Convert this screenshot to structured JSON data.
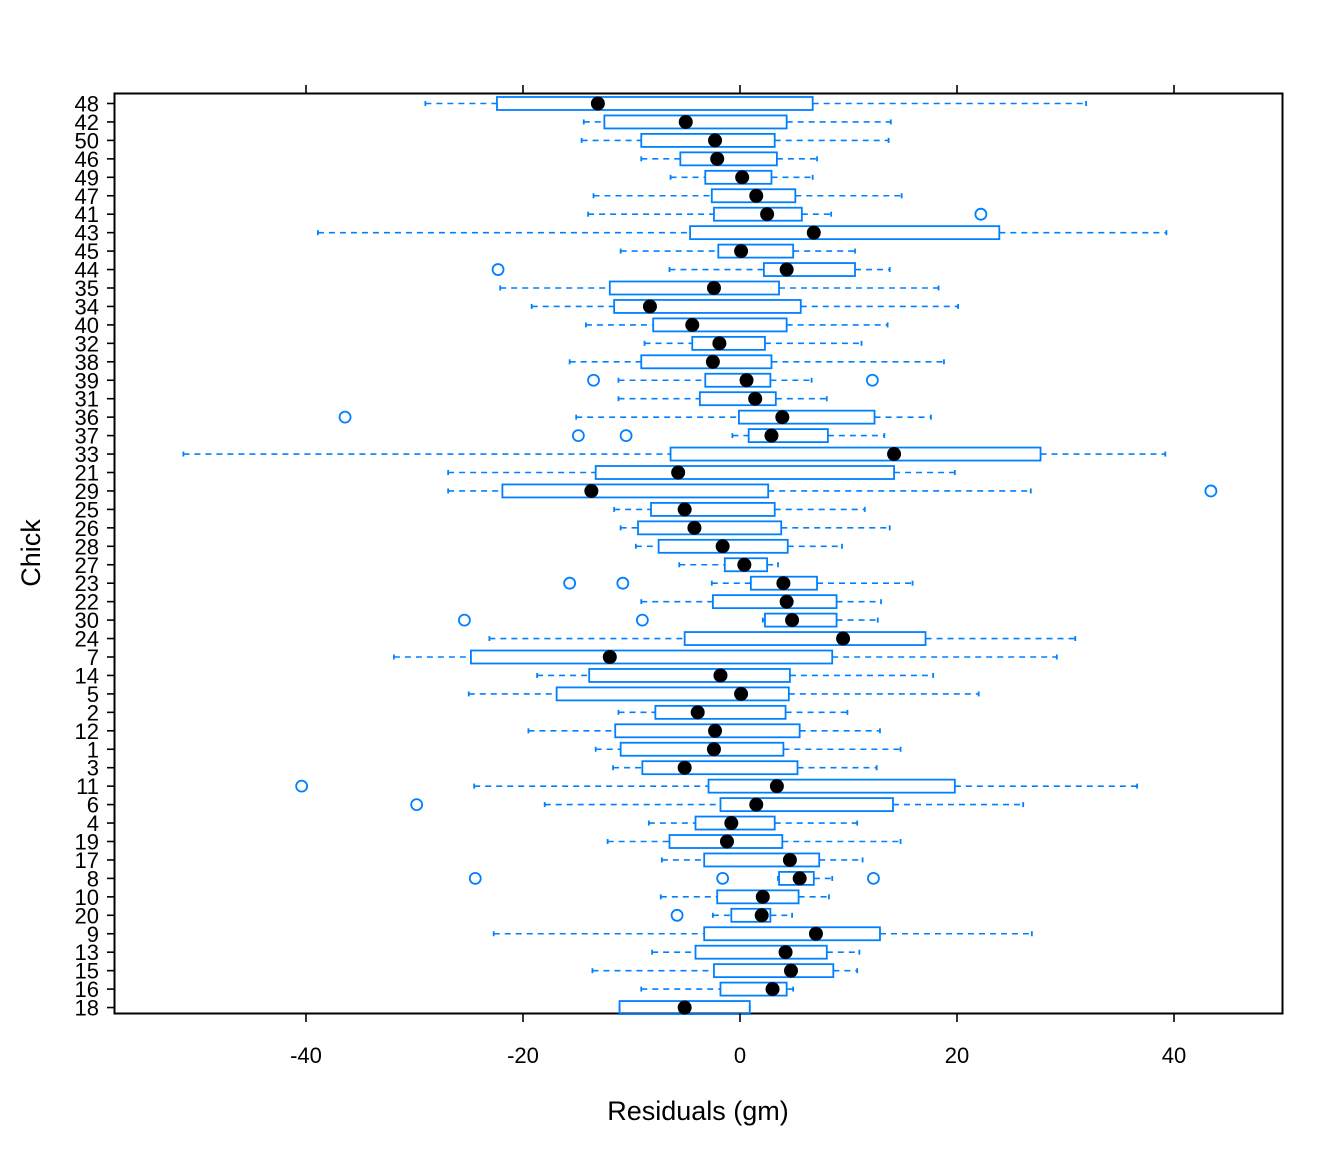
{
  "chart_data": {
    "type": "boxplot",
    "orientation": "horizontal",
    "xlabel": "Residuals (gm)",
    "ylabel": "Chick",
    "xlim": [
      -57,
      50
    ],
    "xticks": [
      -40,
      -20,
      0,
      20,
      40
    ],
    "xtick_labels": [
      "-40",
      "-20",
      "0",
      "20",
      "40"
    ],
    "grid": false,
    "colors": {
      "box": "#0080ff",
      "median": "#000000",
      "frame": "#000000"
    },
    "groups": [
      {
        "label": "48",
        "whisker_low": -29.0,
        "q1": -22.4,
        "median": -13.1,
        "q3": 6.7,
        "whisker_high": 31.9,
        "outliers": []
      },
      {
        "label": "42",
        "whisker_low": -14.4,
        "q1": -12.5,
        "median": -5.0,
        "q3": 4.3,
        "whisker_high": 13.9,
        "outliers": []
      },
      {
        "label": "50",
        "whisker_low": -14.6,
        "q1": -9.1,
        "median": -2.3,
        "q3": 3.2,
        "whisker_high": 13.7,
        "outliers": []
      },
      {
        "label": "46",
        "whisker_low": -9.1,
        "q1": -5.5,
        "median": -2.1,
        "q3": 3.4,
        "whisker_high": 7.1,
        "outliers": []
      },
      {
        "label": "49",
        "whisker_low": -6.4,
        "q1": -3.2,
        "median": 0.2,
        "q3": 2.9,
        "whisker_high": 6.7,
        "outliers": []
      },
      {
        "label": "47",
        "whisker_low": -13.5,
        "q1": -2.6,
        "median": 1.5,
        "q3": 5.1,
        "whisker_high": 14.9,
        "outliers": []
      },
      {
        "label": "41",
        "whisker_low": -14.0,
        "q1": -2.4,
        "median": 2.5,
        "q3": 5.7,
        "whisker_high": 8.4,
        "outliers": [
          22.2
        ]
      },
      {
        "label": "43",
        "whisker_low": -38.9,
        "q1": -4.6,
        "median": 6.8,
        "q3": 23.9,
        "whisker_high": 39.3,
        "outliers": []
      },
      {
        "label": "45",
        "whisker_low": -11.0,
        "q1": -2.0,
        "median": 0.1,
        "q3": 4.9,
        "whisker_high": 10.6,
        "outliers": []
      },
      {
        "label": "44",
        "whisker_low": -6.5,
        "q1": 2.2,
        "median": 4.3,
        "q3": 10.6,
        "whisker_high": 13.8,
        "outliers": [
          -22.3
        ]
      },
      {
        "label": "35",
        "whisker_low": -22.1,
        "q1": -12.0,
        "median": -2.4,
        "q3": 3.6,
        "whisker_high": 18.3,
        "outliers": []
      },
      {
        "label": "34",
        "whisker_low": -19.2,
        "q1": -11.6,
        "median": -8.3,
        "q3": 5.6,
        "whisker_high": 20.1,
        "outliers": []
      },
      {
        "label": "40",
        "whisker_low": -14.2,
        "q1": -8.0,
        "median": -4.4,
        "q3": 4.3,
        "whisker_high": 13.6,
        "outliers": []
      },
      {
        "label": "32",
        "whisker_low": -8.8,
        "q1": -4.4,
        "median": -1.9,
        "q3": 2.3,
        "whisker_high": 11.2,
        "outliers": []
      },
      {
        "label": "38",
        "whisker_low": -15.7,
        "q1": -9.1,
        "median": -2.5,
        "q3": 2.9,
        "whisker_high": 18.8,
        "outliers": []
      },
      {
        "label": "39",
        "whisker_low": -11.2,
        "q1": -3.2,
        "median": 0.6,
        "q3": 2.8,
        "whisker_high": 6.6,
        "outliers": [
          -13.5,
          12.2
        ]
      },
      {
        "label": "31",
        "whisker_low": -11.2,
        "q1": -3.7,
        "median": 1.4,
        "q3": 3.3,
        "whisker_high": 8.0,
        "outliers": []
      },
      {
        "label": "36",
        "whisker_low": -15.1,
        "q1": -0.1,
        "median": 3.9,
        "q3": 12.4,
        "whisker_high": 17.6,
        "outliers": [
          -36.4
        ]
      },
      {
        "label": "37",
        "whisker_low": -0.7,
        "q1": 0.8,
        "median": 2.9,
        "q3": 8.1,
        "whisker_high": 13.3,
        "outliers": [
          -14.9,
          -10.5
        ]
      },
      {
        "label": "33",
        "whisker_low": -51.3,
        "q1": -6.4,
        "median": 14.2,
        "q3": 27.7,
        "whisker_high": 39.2,
        "outliers": []
      },
      {
        "label": "21",
        "whisker_low": -26.9,
        "q1": -13.3,
        "median": -5.7,
        "q3": 14.2,
        "whisker_high": 19.8,
        "outliers": []
      },
      {
        "label": "29",
        "whisker_low": -26.9,
        "q1": -21.9,
        "median": -13.7,
        "q3": 2.6,
        "whisker_high": 26.8,
        "outliers": [
          43.4
        ]
      },
      {
        "label": "25",
        "whisker_low": -11.6,
        "q1": -8.2,
        "median": -5.1,
        "q3": 3.2,
        "whisker_high": 11.5,
        "outliers": []
      },
      {
        "label": "26",
        "whisker_low": -11.0,
        "q1": -9.4,
        "median": -4.2,
        "q3": 3.8,
        "whisker_high": 13.8,
        "outliers": []
      },
      {
        "label": "28",
        "whisker_low": -9.6,
        "q1": -7.5,
        "median": -1.6,
        "q3": 4.4,
        "whisker_high": 9.4,
        "outliers": []
      },
      {
        "label": "27",
        "whisker_low": -5.6,
        "q1": -1.4,
        "median": 0.4,
        "q3": 2.5,
        "whisker_high": 3.5,
        "outliers": []
      },
      {
        "label": "23",
        "whisker_low": -2.6,
        "q1": 1.0,
        "median": 4.0,
        "q3": 7.1,
        "whisker_high": 15.9,
        "outliers": [
          -15.7,
          -10.8
        ]
      },
      {
        "label": "22",
        "whisker_low": -9.1,
        "q1": -2.5,
        "median": 4.3,
        "q3": 8.9,
        "whisker_high": 13.0,
        "outliers": []
      },
      {
        "label": "30",
        "whisker_low": 2.1,
        "q1": 2.3,
        "median": 4.8,
        "q3": 8.9,
        "whisker_high": 12.7,
        "outliers": [
          -25.4,
          -9.0
        ]
      },
      {
        "label": "24",
        "whisker_low": -23.1,
        "q1": -5.1,
        "median": 9.5,
        "q3": 17.1,
        "whisker_high": 30.9,
        "outliers": []
      },
      {
        "label": "7",
        "whisker_low": -31.9,
        "q1": -24.8,
        "median": -12.0,
        "q3": 8.5,
        "whisker_high": 29.2,
        "outliers": []
      },
      {
        "label": "14",
        "whisker_low": -18.7,
        "q1": -13.9,
        "median": -1.8,
        "q3": 4.6,
        "whisker_high": 17.8,
        "outliers": []
      },
      {
        "label": "5",
        "whisker_low": -25.0,
        "q1": -16.9,
        "median": 0.1,
        "q3": 4.5,
        "whisker_high": 22.0,
        "outliers": []
      },
      {
        "label": "2",
        "whisker_low": -11.2,
        "q1": -7.8,
        "median": -3.9,
        "q3": 4.2,
        "whisker_high": 9.9,
        "outliers": []
      },
      {
        "label": "12",
        "whisker_low": -19.5,
        "q1": -11.5,
        "median": -2.3,
        "q3": 5.5,
        "whisker_high": 12.9,
        "outliers": []
      },
      {
        "label": "1",
        "whisker_low": -13.3,
        "q1": -11.0,
        "median": -2.4,
        "q3": 4.0,
        "whisker_high": 14.8,
        "outliers": []
      },
      {
        "label": "3",
        "whisker_low": -11.7,
        "q1": -9.0,
        "median": -5.1,
        "q3": 5.3,
        "whisker_high": 12.6,
        "outliers": []
      },
      {
        "label": "11",
        "whisker_low": -24.5,
        "q1": -2.9,
        "median": 3.4,
        "q3": 19.8,
        "whisker_high": 36.6,
        "outliers": [
          -40.4
        ]
      },
      {
        "label": "6",
        "whisker_low": -18.0,
        "q1": -1.8,
        "median": 1.5,
        "q3": 14.1,
        "whisker_high": 26.1,
        "outliers": [
          -29.8
        ]
      },
      {
        "label": "4",
        "whisker_low": -8.4,
        "q1": -4.1,
        "median": -0.8,
        "q3": 3.2,
        "whisker_high": 10.8,
        "outliers": []
      },
      {
        "label": "19",
        "whisker_low": -12.2,
        "q1": -6.5,
        "median": -1.2,
        "q3": 3.9,
        "whisker_high": 14.8,
        "outliers": []
      },
      {
        "label": "17",
        "whisker_low": -7.2,
        "q1": -3.3,
        "median": 4.6,
        "q3": 7.3,
        "whisker_high": 11.3,
        "outliers": []
      },
      {
        "label": "8",
        "whisker_low": 3.5,
        "q1": 3.6,
        "median": 5.5,
        "q3": 6.8,
        "whisker_high": 8.5,
        "outliers": [
          -24.4,
          -1.6,
          12.3
        ]
      },
      {
        "label": "10",
        "whisker_low": -7.3,
        "q1": -2.1,
        "median": 2.1,
        "q3": 5.4,
        "whisker_high": 8.2,
        "outliers": []
      },
      {
        "label": "20",
        "whisker_low": -2.5,
        "q1": -0.8,
        "median": 2.0,
        "q3": 2.8,
        "whisker_high": 4.8,
        "outliers": [
          -5.8
        ]
      },
      {
        "label": "9",
        "whisker_low": -22.7,
        "q1": -3.3,
        "median": 7.0,
        "q3": 12.9,
        "whisker_high": 26.9,
        "outliers": []
      },
      {
        "label": "13",
        "whisker_low": -8.1,
        "q1": -4.1,
        "median": 4.2,
        "q3": 8.0,
        "whisker_high": 11.0,
        "outliers": []
      },
      {
        "label": "15",
        "whisker_low": -13.6,
        "q1": -2.4,
        "median": 4.7,
        "q3": 8.6,
        "whisker_high": 10.8,
        "outliers": []
      },
      {
        "label": "16",
        "whisker_low": -9.1,
        "q1": -1.8,
        "median": 3.0,
        "q3": 4.3,
        "whisker_high": 4.9,
        "outliers": []
      },
      {
        "label": "18",
        "whisker_low": -11.1,
        "q1": -11.1,
        "median": -5.1,
        "q3": 0.9,
        "whisker_high": 0.9,
        "outliers": []
      }
    ]
  }
}
